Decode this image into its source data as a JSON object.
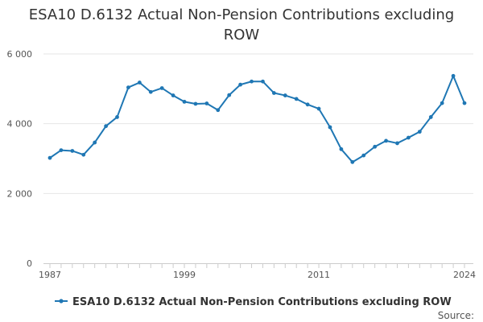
{
  "chart_data": {
    "type": "line",
    "title": "ESA10 D.6132 Actual Non-Pension Contributions excluding ROW",
    "xlabel": "",
    "ylabel": "",
    "x": [
      1987,
      1988,
      1989,
      1990,
      1991,
      1992,
      1993,
      1994,
      1995,
      1996,
      1997,
      1998,
      1999,
      2000,
      2001,
      2002,
      2003,
      2004,
      2005,
      2006,
      2007,
      2008,
      2009,
      2010,
      2011,
      2012,
      2013,
      2014,
      2015,
      2016,
      2017,
      2018,
      2019,
      2020,
      2021,
      2022,
      2023,
      2024
    ],
    "series": [
      {
        "name": "ESA10 D.6132 Actual Non-Pension Contributions excluding ROW",
        "color": "#1f77b4",
        "values": [
          3020,
          3240,
          3220,
          3110,
          3460,
          3930,
          4190,
          5040,
          5180,
          4910,
          5020,
          4810,
          4630,
          4570,
          4580,
          4390,
          4820,
          5120,
          5210,
          5210,
          4880,
          4810,
          4710,
          4550,
          4430,
          3900,
          3270,
          2900,
          3090,
          3340,
          3510,
          3440,
          3600,
          3770,
          4190,
          4590,
          5370,
          4590
        ]
      }
    ],
    "xlim": [
      1987,
      2024
    ],
    "ylim": [
      0,
      6000
    ],
    "x_ticks": [
      {
        "value": 1987,
        "label": "1987"
      },
      {
        "value": 1999,
        "label": "1999"
      },
      {
        "value": 2011,
        "label": "2011"
      },
      {
        "value": 2024,
        "label": "2024"
      }
    ],
    "y_ticks": [
      {
        "value": 0,
        "label": "0"
      },
      {
        "value": 2000,
        "label": "2 000"
      },
      {
        "value": 4000,
        "label": "4 000"
      },
      {
        "value": 6000,
        "label": "6 000"
      }
    ],
    "grid": true,
    "legend": {
      "position": "bottom",
      "label": "ESA10 D.6132 Actual Non-Pension Contributions excluding ROW"
    },
    "source_label": "Source:"
  }
}
